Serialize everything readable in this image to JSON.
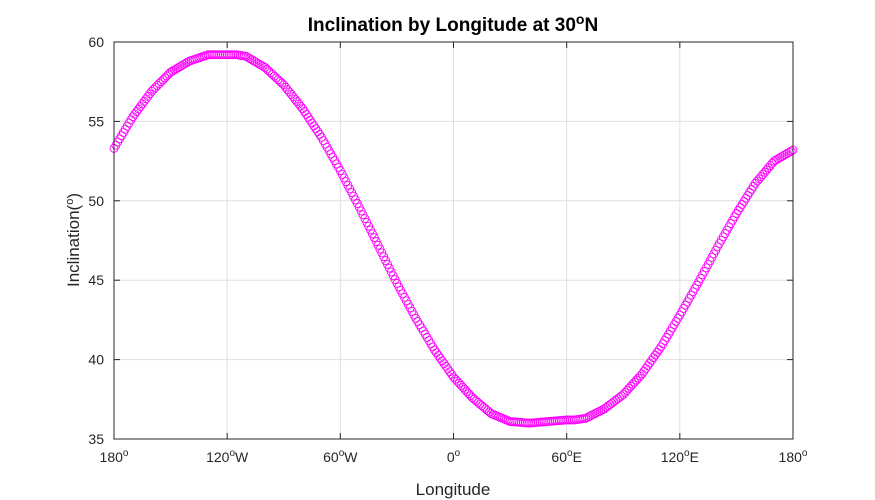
{
  "chart_data": {
    "type": "scatter",
    "title": "Inclination by Longitude at 30",
    "title_superscript": "o",
    "title_suffix": "N",
    "xlabel": "Longitude",
    "ylabel": "Inclination(",
    "ylabel_superscript": "o",
    "ylabel_suffix": ")",
    "xlim": [
      -180,
      180
    ],
    "ylim": [
      35,
      60
    ],
    "grid": true,
    "x_ticks": [
      {
        "value": -180,
        "label": "180",
        "sup": "o",
        "suffix": ""
      },
      {
        "value": -120,
        "label": "120",
        "sup": "o",
        "suffix": "W"
      },
      {
        "value": -60,
        "label": "60",
        "sup": "o",
        "suffix": "W"
      },
      {
        "value": 0,
        "label": "0",
        "sup": "o",
        "suffix": ""
      },
      {
        "value": 60,
        "label": "60",
        "sup": "o",
        "suffix": "E"
      },
      {
        "value": 120,
        "label": "120",
        "sup": "o",
        "suffix": "E"
      },
      {
        "value": 180,
        "label": "180",
        "sup": "o",
        "suffix": ""
      }
    ],
    "y_ticks": [
      {
        "value": 35,
        "label": "35"
      },
      {
        "value": 40,
        "label": "40"
      },
      {
        "value": 45,
        "label": "45"
      },
      {
        "value": 50,
        "label": "50"
      },
      {
        "value": 55,
        "label": "55"
      },
      {
        "value": 60,
        "label": "60"
      }
    ],
    "series": [
      {
        "color": "#ff00ff",
        "marker": "circle-open",
        "x": [
          -180,
          -170,
          -160,
          -150,
          -140,
          -130,
          -120,
          -115,
          -110,
          -100,
          -90,
          -80,
          -70,
          -60,
          -50,
          -40,
          -30,
          -20,
          -10,
          0,
          10,
          20,
          30,
          40,
          50,
          60,
          64,
          70,
          80,
          90,
          100,
          110,
          120,
          130,
          140,
          150,
          160,
          170,
          180
        ],
        "y": [
          53.3,
          55.3,
          56.9,
          58.1,
          58.8,
          59.2,
          59.2,
          59.2,
          59.1,
          58.4,
          57.3,
          55.8,
          54.0,
          51.9,
          49.6,
          47.2,
          44.8,
          42.6,
          40.6,
          38.9,
          37.6,
          36.6,
          36.1,
          36.0,
          36.1,
          36.2,
          36.2,
          36.3,
          36.9,
          37.8,
          39.1,
          40.8,
          42.8,
          44.9,
          47.1,
          49.2,
          51.1,
          52.5,
          53.2
        ]
      }
    ]
  }
}
